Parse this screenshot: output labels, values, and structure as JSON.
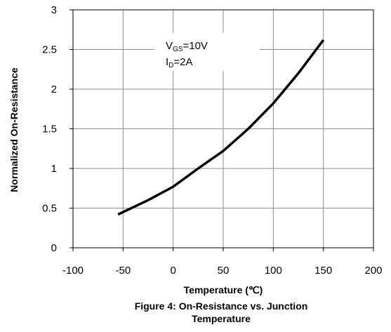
{
  "chart_data": {
    "type": "line",
    "title": "",
    "xlabel": "Temperature (℃)",
    "ylabel": "Normalized On-Resistance",
    "xlim": [
      -100,
      200
    ],
    "ylim": [
      0,
      3
    ],
    "xticks": [
      "-100",
      "-50",
      "0",
      "50",
      "100",
      "150",
      "200"
    ],
    "yticks": [
      "0",
      "0.5",
      "1",
      "1.5",
      "2",
      "2.5",
      "3"
    ],
    "grid": true,
    "legend": "none",
    "series": [
      {
        "x": [
          -55,
          -25,
          0,
          25,
          50,
          75,
          100,
          125,
          150
        ],
        "y": [
          0.42,
          0.6,
          0.77,
          1.0,
          1.22,
          1.5,
          1.82,
          2.2,
          2.62
        ],
        "color": "#000000"
      }
    ],
    "annotations": [
      {
        "main": "V",
        "sub": "GS",
        "tail": "=10V"
      },
      {
        "main": "I",
        "sub": "D",
        "tail": "=2A"
      }
    ]
  },
  "caption": {
    "line1": "Figure 4: On-Resistance vs. Junction",
    "line2": "Temperature"
  }
}
